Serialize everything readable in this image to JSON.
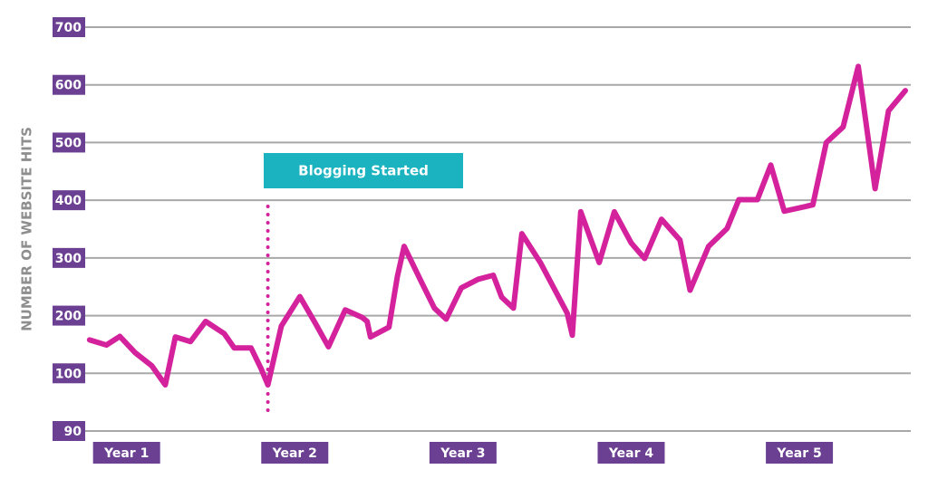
{
  "chart_data": {
    "type": "line",
    "y_label": "NUMBER OF WEBSITE HITS",
    "color": "#d4229d",
    "grid": true,
    "ylim": [
      90,
      700
    ],
    "yticks": [
      90,
      100,
      200,
      300,
      400,
      500,
      600,
      700
    ],
    "xlim": [
      0.7,
      5.7
    ],
    "xticks": [
      {
        "value": 1,
        "label": "Year 1"
      },
      {
        "value": 2,
        "label": "Year 2"
      },
      {
        "value": 3,
        "label": "Year 3"
      },
      {
        "value": 4,
        "label": "Year 4"
      },
      {
        "value": 5,
        "label": "Year 5"
      }
    ],
    "x": [
      0.78,
      0.88,
      0.96,
      1.05,
      1.15,
      1.23,
      1.29,
      1.38,
      1.47,
      1.58,
      1.64,
      1.74,
      1.8,
      1.84,
      1.92,
      2.03,
      2.12,
      2.2,
      2.3,
      2.4,
      2.43,
      2.45,
      2.56,
      2.61,
      2.65,
      2.75,
      2.83,
      2.9,
      2.99,
      3.09,
      3.18,
      3.23,
      3.3,
      3.35,
      3.46,
      3.54,
      3.62,
      3.65,
      3.7,
      3.81,
      3.9,
      4.0,
      4.08,
      4.18,
      4.29,
      4.35,
      4.46,
      4.57,
      4.64,
      4.75,
      4.83,
      4.91,
      5.08,
      5.16,
      5.26,
      5.35,
      5.45,
      5.53,
      5.63
    ],
    "values": [
      158,
      149,
      164,
      136,
      113,
      98,
      163,
      155,
      190,
      169,
      144,
      144,
      108,
      98,
      182,
      233,
      188,
      146,
      210,
      197,
      190,
      163,
      180,
      268,
      320,
      260,
      213,
      194,
      248,
      263,
      270,
      232,
      213,
      342,
      292,
      248,
      204,
      166,
      380,
      292,
      380,
      326,
      299,
      367,
      331,
      244,
      320,
      351,
      401,
      401,
      461,
      381,
      392,
      500,
      527,
      632,
      420,
      555,
      590
    ],
    "annotation": {
      "text": "Blogging Started",
      "x": 1.84
    }
  }
}
